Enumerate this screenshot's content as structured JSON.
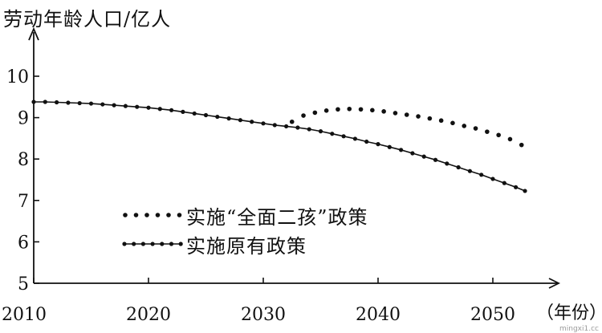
{
  "chart_data": {
    "type": "line",
    "ylabel": "劳动年龄人口/亿人",
    "xlabel": "（年份）",
    "xlim": [
      2010,
      2053
    ],
    "ylim": [
      5,
      10.6
    ],
    "x_ticks": [
      2010,
      2020,
      2030,
      2040,
      2050
    ],
    "y_ticks": [
      5,
      6,
      7,
      8,
      9,
      10
    ],
    "legend_position": "lower-left-inside",
    "series": [
      {
        "name": "实施“全面二孩”政策",
        "style": "dotted",
        "color": "#111111",
        "x": [
          2032.5,
          2033.5,
          2034.5,
          2035.5,
          2036.5,
          2037.5,
          2038.5,
          2039.5,
          2040.5,
          2041.5,
          2042.5,
          2043.5,
          2044.5,
          2045.5,
          2046.5,
          2047.5,
          2048.5,
          2049.5,
          2050.5,
          2051.5,
          2052.5
        ],
        "y": [
          8.9,
          9.05,
          9.12,
          9.17,
          9.2,
          9.21,
          9.2,
          9.18,
          9.15,
          9.11,
          9.07,
          9.03,
          8.98,
          8.93,
          8.87,
          8.8,
          8.74,
          8.66,
          8.58,
          8.48,
          8.34
        ]
      },
      {
        "name": "实施原有政策",
        "style": "solid-dotted",
        "color": "#111111",
        "x": [
          2010,
          2011,
          2012,
          2013,
          2014,
          2015,
          2016,
          2017,
          2018,
          2019,
          2020,
          2021,
          2022,
          2023,
          2024,
          2025,
          2026,
          2027,
          2028,
          2029,
          2030,
          2031,
          2032,
          2033,
          2034,
          2035,
          2036,
          2037,
          2038,
          2039,
          2040,
          2041,
          2042,
          2043,
          2044,
          2045,
          2046,
          2047,
          2048,
          2049,
          2050,
          2051,
          2052,
          2052.8
        ],
        "y": [
          9.38,
          9.38,
          9.37,
          9.36,
          9.35,
          9.34,
          9.32,
          9.3,
          9.28,
          9.26,
          9.24,
          9.21,
          9.18,
          9.14,
          9.1,
          9.06,
          9.02,
          8.98,
          8.94,
          8.9,
          8.86,
          8.82,
          8.79,
          8.76,
          8.72,
          8.67,
          8.61,
          8.55,
          8.49,
          8.42,
          8.36,
          8.29,
          8.22,
          8.14,
          8.06,
          7.98,
          7.89,
          7.8,
          7.71,
          7.62,
          7.52,
          7.42,
          7.32,
          7.23
        ]
      }
    ]
  },
  "watermark": "mingxi1.cc"
}
